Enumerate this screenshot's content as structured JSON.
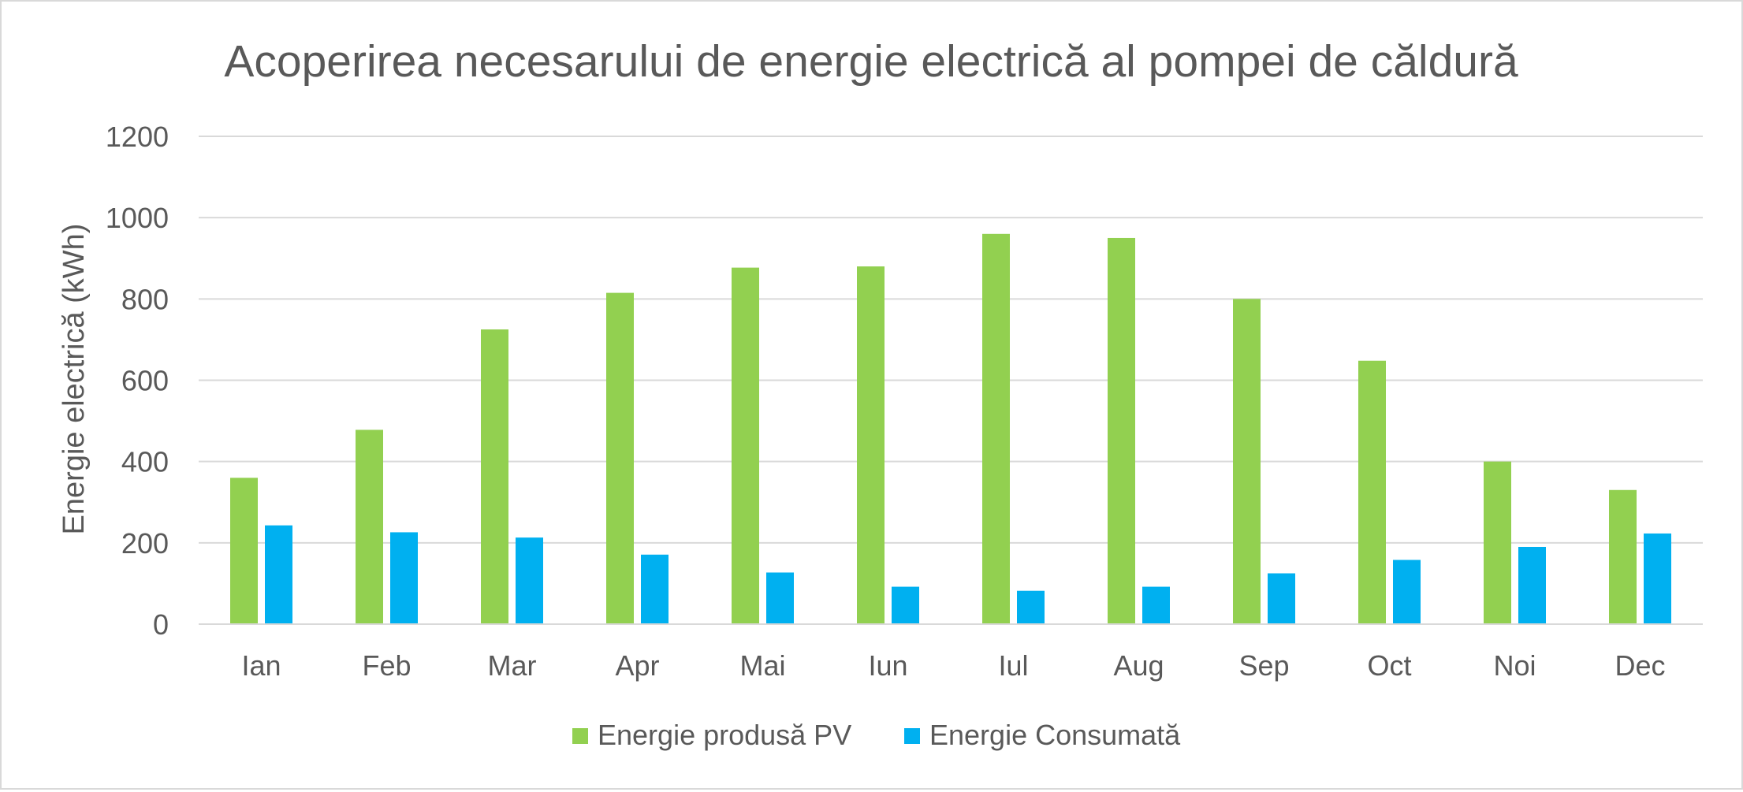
{
  "chart_data": {
    "type": "bar",
    "title": "Acoperirea necesarului de energie electrică al pompei de căldură",
    "xlabel": "",
    "ylabel": "Energie electrică (kWh)",
    "ylim": [
      0,
      1200
    ],
    "yticks": [
      0,
      200,
      400,
      600,
      800,
      1000,
      1200
    ],
    "grid": true,
    "legend_position": "bottom",
    "categories": [
      "Ian",
      "Feb",
      "Mar",
      "Apr",
      "Mai",
      "Iun",
      "Iul",
      "Aug",
      "Sep",
      "Oct",
      "Noi",
      "Dec"
    ],
    "series": [
      {
        "name": "Energie produsă PV",
        "color": "#92d050",
        "values": [
          360,
          478,
          725,
          815,
          877,
          880,
          960,
          950,
          800,
          648,
          400,
          330
        ]
      },
      {
        "name": "Energie Consumată",
        "color": "#00b0f0",
        "values": [
          243,
          226,
          213,
          171,
          127,
          92,
          82,
          92,
          125,
          158,
          190,
          223
        ]
      }
    ]
  },
  "colors": {
    "gridline": "#d9d9d9",
    "axis_text": "#595959",
    "border": "#d9d9d9"
  }
}
